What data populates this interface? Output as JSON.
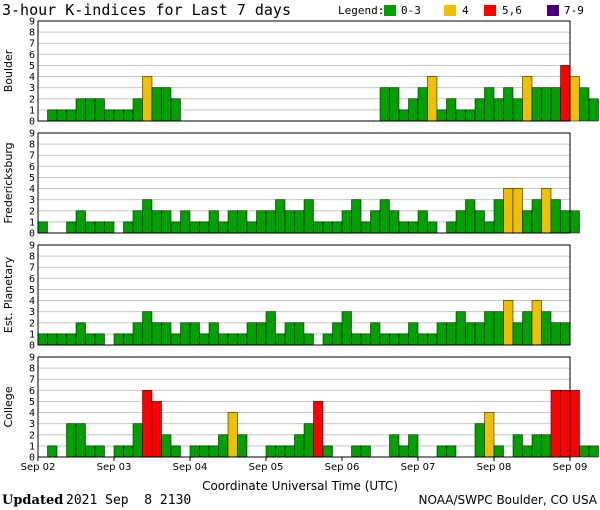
{
  "title": "3-hour K-indices for Last 7 days",
  "legend": {
    "label": "Legend:",
    "items": [
      {
        "label": "0-3",
        "color": "#00a000"
      },
      {
        "label": "4",
        "color": "#f0c000"
      },
      {
        "label": "5,6",
        "color": "#ff0000"
      },
      {
        "label": "7-9",
        "color": "#4b0082"
      }
    ]
  },
  "footer": {
    "updated_label": "Updated",
    "updated_value": "2021 Sep  8 2130",
    "source": "NOAA/SWPC Boulder, CO USA"
  },
  "chart_data": [
    {
      "type": "bar",
      "title": "Boulder",
      "ylim": [
        0,
        9
      ],
      "yticks": [
        "0",
        "1",
        "2",
        "3",
        "4",
        "5",
        "6",
        "7",
        "8",
        "9"
      ],
      "values": [
        0,
        1,
        1,
        1,
        2,
        2,
        2,
        1,
        1,
        1,
        2,
        4,
        3,
        3,
        2,
        0,
        0,
        0,
        0,
        0,
        0,
        0,
        0,
        0,
        0,
        0,
        0,
        0,
        0,
        0,
        0,
        0,
        0,
        0,
        0,
        0,
        3,
        3,
        1,
        2,
        3,
        4,
        1,
        2,
        1,
        1,
        2,
        3,
        2,
        3,
        2,
        4,
        3,
        3,
        3,
        5,
        4,
        3,
        2,
        0
      ]
    },
    {
      "type": "bar",
      "title": "Fredericksburg",
      "ylim": [
        0,
        9
      ],
      "yticks": [
        "0",
        "1",
        "2",
        "3",
        "4",
        "5",
        "6",
        "7",
        "8",
        "9"
      ],
      "values": [
        1,
        0,
        0,
        1,
        2,
        1,
        1,
        1,
        0,
        1,
        2,
        3,
        2,
        2,
        1,
        2,
        1,
        1,
        2,
        1,
        2,
        2,
        1,
        2,
        2,
        3,
        2,
        2,
        3,
        1,
        1,
        1,
        2,
        3,
        1,
        2,
        3,
        2,
        1,
        1,
        2,
        1,
        0,
        1,
        2,
        3,
        2,
        1,
        3,
        4,
        4,
        2,
        3,
        4,
        3,
        2,
        2,
        0
      ]
    },
    {
      "type": "bar",
      "title": "Est. Planetary",
      "ylim": [
        0,
        9
      ],
      "yticks": [
        "0",
        "1",
        "2",
        "3",
        "4",
        "5",
        "6",
        "7",
        "8",
        "9"
      ],
      "values": [
        1,
        1,
        1,
        1,
        2,
        1,
        1,
        0,
        1,
        1,
        2,
        3,
        2,
        2,
        1,
        2,
        2,
        1,
        2,
        1,
        1,
        1,
        2,
        2,
        3,
        1,
        2,
        2,
        1,
        0,
        1,
        2,
        3,
        1,
        1,
        2,
        1,
        1,
        1,
        2,
        1,
        1,
        2,
        2,
        3,
        2,
        2,
        3,
        3,
        4,
        2,
        3,
        4,
        3,
        2,
        2,
        0
      ]
    },
    {
      "type": "bar",
      "title": "College",
      "ylim": [
        0,
        9
      ],
      "yticks": [
        "0",
        "1",
        "2",
        "3",
        "4",
        "5",
        "6",
        "7",
        "8",
        "9"
      ],
      "values": [
        0,
        1,
        0,
        3,
        3,
        1,
        1,
        0,
        1,
        1,
        3,
        6,
        5,
        2,
        1,
        0,
        1,
        1,
        1,
        2,
        4,
        2,
        0,
        0,
        1,
        1,
        1,
        2,
        3,
        5,
        1,
        0,
        0,
        1,
        1,
        0,
        0,
        2,
        1,
        2,
        0,
        0,
        1,
        1,
        0,
        0,
        3,
        4,
        1,
        0,
        2,
        1,
        2,
        2,
        6,
        6,
        6,
        1,
        1,
        0
      ]
    }
  ],
  "x_axis": {
    "ticks": [
      "Sep 02",
      "Sep 03",
      "Sep 04",
      "Sep 05",
      "Sep 06",
      "Sep 07",
      "Sep 08",
      "Sep 09"
    ],
    "label": "Coordinate Universal Time (UTC)"
  }
}
